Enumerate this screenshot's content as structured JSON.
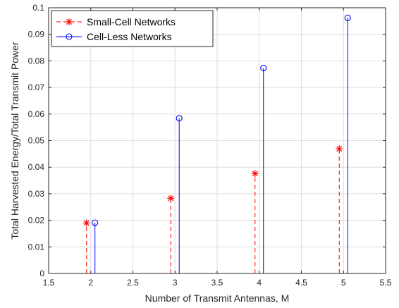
{
  "chart_data": {
    "type": "stem",
    "xlabel": "Number of Transmit Antennas, M",
    "ylabel": "Total Harvested Energy/Total Transmit Power",
    "xlim": [
      1.5,
      5.5
    ],
    "ylim": [
      0,
      0.1
    ],
    "xticks": [
      "1.5",
      "2",
      "2.5",
      "3",
      "3.5",
      "4",
      "4.5",
      "5",
      "5.5"
    ],
    "yticks": [
      "0",
      "0.01",
      "0.02",
      "0.03",
      "0.04",
      "0.05",
      "0.06",
      "0.07",
      "0.08",
      "0.09",
      "0.1"
    ],
    "grid": true,
    "legend_position": "top-left",
    "series": [
      {
        "name": "Small-Cell Networks",
        "color": "#ff0000",
        "line_style": "dashed",
        "marker": "asterisk",
        "x": [
          1.95,
          2.95,
          3.95,
          4.95
        ],
        "y": [
          0.019,
          0.0283,
          0.0376,
          0.0469
        ]
      },
      {
        "name": "Cell-Less Networks",
        "color": "#0000ff",
        "line_style": "solid",
        "marker": "circle",
        "x": [
          2.05,
          3.05,
          4.05,
          5.05
        ],
        "y": [
          0.0191,
          0.0584,
          0.0773,
          0.0962
        ]
      }
    ]
  }
}
